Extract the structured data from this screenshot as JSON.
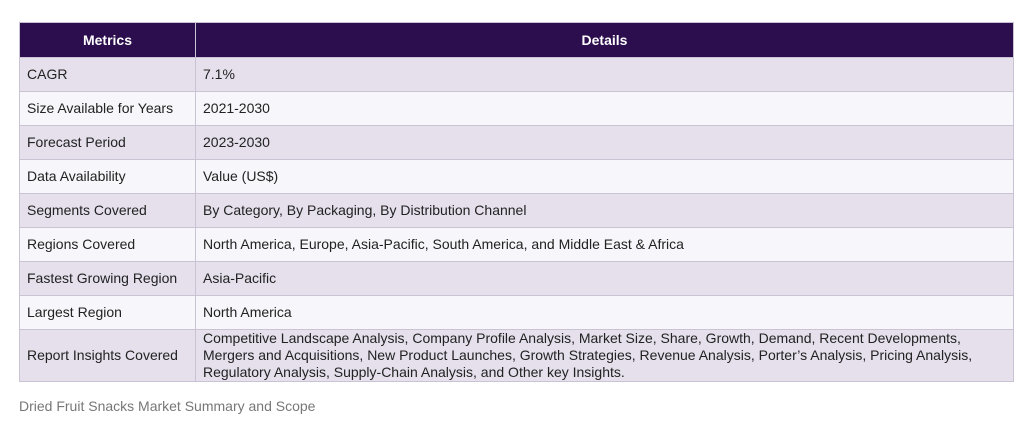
{
  "table": {
    "header": [
      "Metrics",
      "Details"
    ],
    "rows": [
      [
        "CAGR",
        "7.1%"
      ],
      [
        "Size Available for Years",
        "2021-2030"
      ],
      [
        "Forecast Period",
        "2023-2030"
      ],
      [
        "Data Availability",
        "Value (US$)"
      ],
      [
        "Segments Covered",
        "By Category, By Packaging, By Distribution Channel"
      ],
      [
        "Regions Covered",
        "North America, Europe, Asia-Pacific, South America, and Middle East & Africa"
      ],
      [
        "Fastest Growing Region",
        "Asia-Pacific"
      ],
      [
        "Largest Region",
        "North America"
      ],
      [
        "Report Insights Covered",
        "Competitive Landscape Analysis, Company Profile Analysis, Market Size, Share, Growth, Demand, Recent Developments, Mergers and Acquisitions, New Product Launches, Growth Strategies, Revenue Analysis, Porter’s Analysis, Pricing Analysis, Regulatory Analysis, Supply-Chain Analysis, and Other key Insights."
      ]
    ]
  },
  "caption": "Dried Fruit Snacks Market Summary and Scope"
}
